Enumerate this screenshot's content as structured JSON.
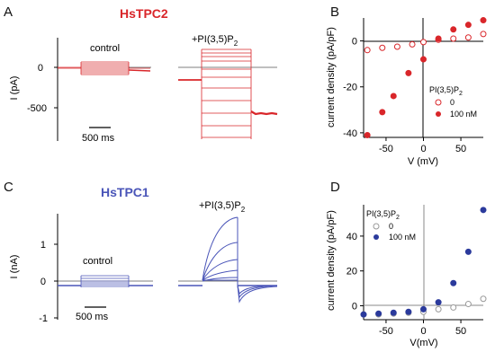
{
  "panels": {
    "A": {
      "letter": "A",
      "title": "HsTPC2",
      "title_color": "#d9262a",
      "ylabel": "I (pA)",
      "yticks": [
        "0",
        "-500"
      ],
      "scalebar": "500 ms",
      "control_label": "control",
      "treat_label": "+PI(3,5)P",
      "treat_sub": "2"
    },
    "C": {
      "letter": "C",
      "title": "HsTPC1",
      "title_color": "#4a55b8",
      "ylabel": "I (nA)",
      "yticks": [
        "1",
        "0",
        "-1"
      ],
      "scalebar": "500 ms",
      "control_label": "control",
      "treat_label": "+PI(3,5)P",
      "treat_sub": "2"
    }
  },
  "chart_data": [
    {
      "panel": "B",
      "type": "scatter",
      "xlabel": "V (mV)",
      "ylabel": "current density (pA/pF)",
      "xlim": [
        -80,
        80
      ],
      "ylim": [
        -42,
        10
      ],
      "xticks": [
        -50,
        0,
        50
      ],
      "yticks": [
        0,
        -20,
        -40
      ],
      "legend_title": "PI(3,5)P",
      "legend_title_sub": "2",
      "legend_position": "right",
      "color": "#d9262a",
      "series": [
        {
          "name": "0",
          "marker": "open",
          "x": [
            -75,
            -55,
            -35,
            -15,
            0,
            20,
            40,
            60,
            80
          ],
          "y": [
            -4,
            -3,
            -2.5,
            -1.5,
            -0.5,
            0.5,
            1,
            1.5,
            3
          ]
        },
        {
          "name": "100 nM",
          "marker": "filled",
          "x": [
            -75,
            -55,
            -40,
            -20,
            0,
            20,
            40,
            60,
            80
          ],
          "y": [
            -41,
            -31,
            -24,
            -14,
            -8,
            1,
            5,
            7,
            9
          ]
        }
      ]
    },
    {
      "panel": "D",
      "type": "scatter",
      "xlabel": "V(mV)",
      "ylabel": "current density (pA/pF)",
      "xlim": [
        -80,
        80
      ],
      "ylim": [
        -8,
        58
      ],
      "xticks": [
        -50,
        0,
        50
      ],
      "yticks": [
        40,
        20,
        0
      ],
      "legend_title": "PI(3,5)P",
      "legend_title_sub": "2",
      "legend_position": "top-left",
      "color": "#2b3a9c",
      "series": [
        {
          "name": "0",
          "marker": "open",
          "x": [
            -80,
            -60,
            -40,
            -20,
            0,
            20,
            40,
            60,
            80
          ],
          "y": [
            -5,
            -5,
            -4.5,
            -4,
            -3.5,
            -2,
            -1,
            1,
            4
          ]
        },
        {
          "name": "100 nM",
          "marker": "filled",
          "x": [
            -80,
            -60,
            -40,
            -20,
            0,
            20,
            40,
            60,
            80
          ],
          "y": [
            -5,
            -4.5,
            -4,
            -3.5,
            -2,
            2,
            13,
            31,
            55
          ]
        }
      ]
    }
  ]
}
